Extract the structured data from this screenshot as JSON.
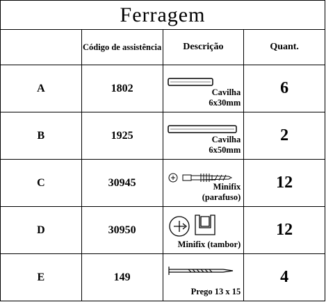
{
  "header": {
    "title": "Ferragem"
  },
  "table": {
    "columns": [
      "Código de assistência",
      "Descrição",
      "Quant."
    ],
    "rows": [
      [
        "A",
        "1802",
        "Cavilha 6x30mm",
        "6"
      ],
      [
        "B",
        "1925",
        "Cavilha 6x50mm",
        "2"
      ],
      [
        "C",
        "30945",
        "Minifix (parafuso)",
        "12"
      ],
      [
        "D",
        "30950",
        "Minifix (tambor)",
        "12"
      ],
      [
        "E",
        "149",
        "Prego 13 x 15",
        "4"
      ]
    ]
  }
}
